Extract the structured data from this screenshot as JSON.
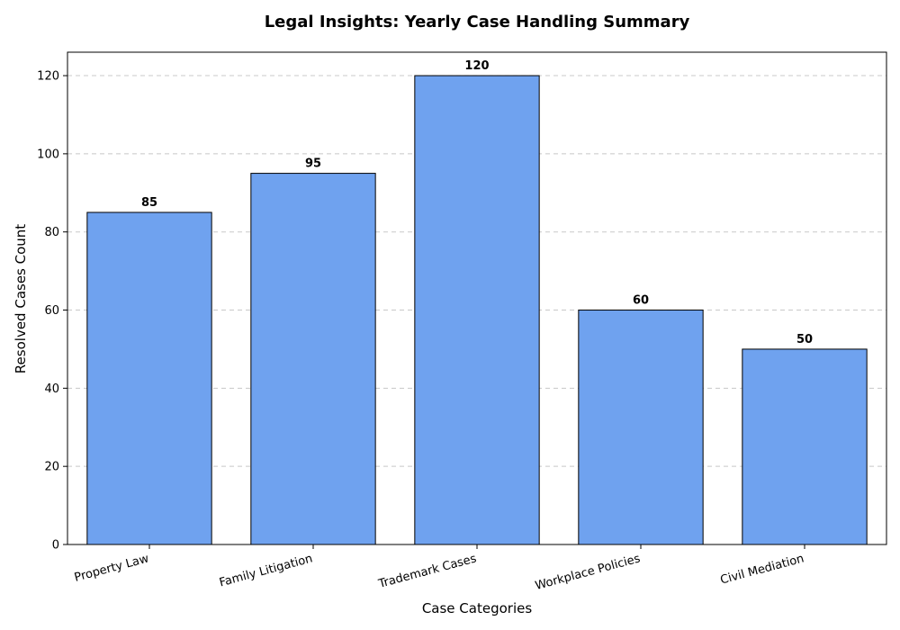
{
  "chart_data": {
    "type": "bar",
    "title": "Legal Insights: Yearly Case Handling Summary",
    "xlabel": "Case Categories",
    "ylabel": "Resolved Cases Count",
    "categories": [
      "Property Law",
      "Family Litigation",
      "Trademark Cases",
      "Workplace Policies",
      "Civil Mediation"
    ],
    "values": [
      85,
      95,
      120,
      60,
      50
    ],
    "data_labels": [
      "85",
      "95",
      "120",
      "60",
      "50"
    ],
    "ylim": [
      0,
      126
    ],
    "yticks": [
      0,
      20,
      40,
      60,
      80,
      100,
      120
    ],
    "ytick_labels": [
      "0",
      "20",
      "40",
      "60",
      "80",
      "100",
      "120"
    ],
    "grid": "y-dashed",
    "legend": "none",
    "colors": {
      "bar": "#6fa2ef",
      "edge": "#000000",
      "grid": "#c8c8c8"
    }
  }
}
